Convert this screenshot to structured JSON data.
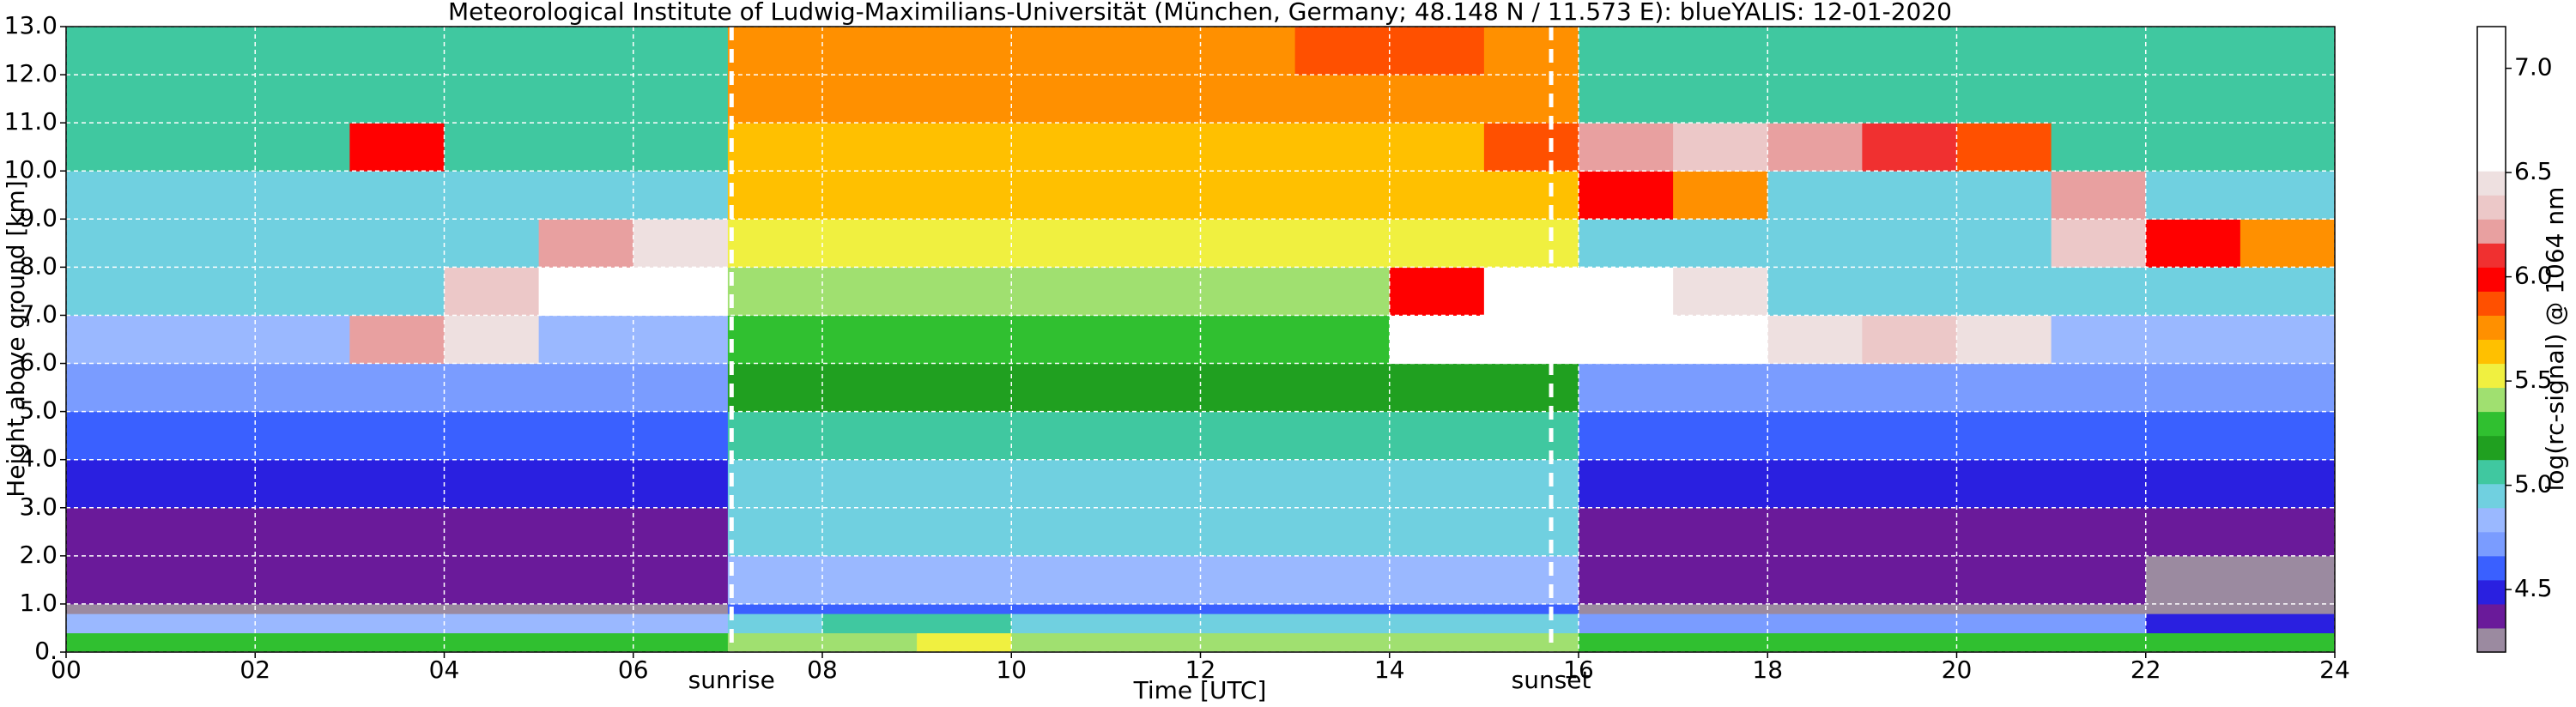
{
  "chart_data": {
    "type": "heatmap",
    "title": "Meteorological Institute of Ludwig-Maximilians-Universität (München, Germany; 48.148 N / 11.573 E):    blueYALIS: 12-01-2020",
    "x_label": "Time [UTC]",
    "y_label": "Height above ground [km]",
    "colorbar_label": "log(rc-signal) @ 1064 nm",
    "x": [
      0,
      1,
      2,
      3,
      4,
      5,
      6,
      7,
      8,
      9,
      10,
      11,
      12,
      13,
      14,
      15,
      16,
      17,
      18,
      19,
      20,
      21,
      22,
      23,
      24
    ],
    "y": [
      0,
      0.4,
      0.8,
      1,
      2,
      3,
      4,
      5,
      6,
      7,
      8,
      9,
      10,
      11,
      12,
      13
    ],
    "z": [
      [
        5.3,
        5.3,
        5.3,
        5.3,
        5.3,
        5.3,
        5.3,
        5.4,
        5.4,
        5.5,
        5.4,
        5.4,
        5.4,
        5.4,
        5.4,
        5.4,
        5.3,
        5.3,
        5.3,
        5.3,
        5.3,
        5.3,
        5.3,
        5.3
      ],
      [
        4.8,
        4.8,
        4.8,
        4.8,
        4.8,
        4.8,
        4.8,
        5.0,
        5.1,
        5.1,
        5.0,
        5.0,
        5.0,
        5.0,
        5.0,
        5.0,
        4.7,
        4.7,
        4.7,
        4.7,
        4.7,
        4.7,
        4.5,
        4.5
      ],
      [
        4.3,
        4.3,
        4.3,
        4.3,
        4.3,
        4.3,
        4.3,
        4.6,
        4.6,
        4.6,
        4.6,
        4.6,
        4.6,
        4.6,
        4.6,
        4.6,
        4.3,
        4.3,
        4.3,
        4.3,
        4.3,
        4.3,
        4.3,
        4.3
      ],
      [
        4.4,
        4.4,
        4.4,
        4.4,
        4.4,
        4.4,
        4.4,
        4.8,
        4.8,
        4.8,
        4.8,
        4.8,
        4.8,
        4.8,
        4.8,
        4.8,
        4.4,
        4.4,
        4.4,
        4.4,
        4.4,
        4.4,
        4.3,
        4.3
      ],
      [
        4.4,
        4.4,
        4.4,
        4.4,
        4.4,
        4.4,
        4.4,
        4.9,
        4.9,
        4.9,
        4.9,
        4.9,
        4.9,
        4.9,
        4.9,
        4.9,
        4.4,
        4.4,
        4.4,
        4.4,
        4.4,
        4.4,
        4.4,
        4.4
      ],
      [
        4.5,
        4.5,
        4.5,
        4.5,
        4.5,
        4.5,
        4.5,
        5.0,
        5.0,
        5.0,
        5.0,
        5.0,
        5.0,
        5.0,
        5.0,
        5.0,
        4.5,
        4.5,
        4.5,
        4.5,
        4.5,
        4.5,
        4.5,
        4.5
      ],
      [
        4.6,
        4.6,
        4.6,
        4.6,
        4.6,
        4.6,
        4.6,
        5.1,
        5.1,
        5.1,
        5.1,
        5.1,
        5.1,
        5.1,
        5.1,
        5.1,
        4.6,
        4.6,
        4.6,
        4.6,
        4.6,
        4.6,
        4.6,
        4.6
      ],
      [
        4.7,
        4.7,
        4.7,
        4.7,
        4.7,
        4.7,
        4.7,
        5.2,
        5.2,
        5.2,
        5.2,
        5.2,
        5.2,
        5.2,
        5.2,
        5.2,
        4.7,
        4.7,
        4.7,
        4.7,
        4.7,
        4.7,
        4.7,
        4.7
      ],
      [
        4.8,
        4.8,
        4.8,
        6.2,
        6.5,
        4.8,
        4.8,
        5.3,
        5.3,
        5.3,
        5.3,
        5.3,
        5.3,
        5.3,
        7.0,
        7.0,
        6.9,
        6.8,
        6.5,
        6.3,
        6.4,
        4.8,
        4.8,
        4.8
      ],
      [
        4.9,
        4.9,
        4.9,
        4.9,
        6.3,
        6.6,
        6.7,
        5.4,
        5.4,
        5.4,
        5.4,
        5.4,
        5.4,
        5.4,
        6.0,
        6.9,
        6.8,
        6.5,
        4.9,
        4.9,
        4.9,
        4.9,
        4.9,
        4.9
      ],
      [
        5.0,
        5.0,
        5.0,
        5.0,
        5.0,
        6.2,
        6.4,
        5.5,
        5.5,
        5.5,
        5.5,
        5.5,
        5.5,
        5.5,
        5.5,
        5.5,
        5.0,
        5.0,
        5.0,
        5.0,
        5.0,
        6.3,
        6.0,
        5.8
      ],
      [
        5.0,
        5.0,
        5.0,
        5.0,
        5.0,
        5.0,
        5.0,
        5.6,
        5.6,
        5.6,
        5.6,
        5.6,
        5.6,
        5.6,
        5.6,
        5.6,
        6.0,
        5.8,
        5.0,
        5.0,
        5.0,
        6.2,
        5.0,
        5.0
      ],
      [
        5.1,
        5.1,
        5.1,
        6.0,
        5.1,
        5.1,
        5.1,
        5.6,
        5.6,
        5.6,
        5.6,
        5.6,
        5.6,
        5.6,
        5.6,
        5.9,
        6.2,
        6.3,
        6.2,
        6.1,
        5.9,
        5.1,
        5.1,
        5.1
      ],
      [
        5.1,
        5.1,
        5.1,
        5.1,
        5.1,
        5.1,
        5.1,
        5.7,
        5.7,
        5.7,
        5.7,
        5.7,
        5.7,
        5.7,
        5.7,
        5.7,
        5.1,
        5.1,
        5.1,
        5.1,
        5.1,
        5.1,
        5.1,
        5.1
      ],
      [
        5.1,
        5.1,
        5.1,
        5.1,
        5.1,
        5.1,
        5.1,
        5.7,
        5.7,
        5.7,
        5.7,
        5.7,
        5.7,
        5.9,
        5.9,
        5.7,
        5.1,
        5.1,
        5.1,
        5.1,
        5.1,
        5.1,
        5.1,
        5.1
      ]
    ],
    "xlim": [
      0,
      24
    ],
    "ylim": [
      0,
      13
    ],
    "zlim": [
      4.2,
      7.2
    ],
    "xticks": [
      {
        "value": 0,
        "label": "00"
      },
      {
        "value": 2,
        "label": "02"
      },
      {
        "value": 4,
        "label": "04"
      },
      {
        "value": 6,
        "label": "06"
      },
      {
        "value": 8,
        "label": "08"
      },
      {
        "value": 10,
        "label": "10"
      },
      {
        "value": 12,
        "label": "12"
      },
      {
        "value": 14,
        "label": "14"
      },
      {
        "value": 16,
        "label": "16"
      },
      {
        "value": 18,
        "label": "18"
      },
      {
        "value": 20,
        "label": "20"
      },
      {
        "value": 22,
        "label": "22"
      },
      {
        "value": 24,
        "label": "24"
      }
    ],
    "yticks": [
      {
        "value": 0,
        "label": "0."
      },
      {
        "value": 1,
        "label": "1.0"
      },
      {
        "value": 2,
        "label": "2.0"
      },
      {
        "value": 3,
        "label": "3.0"
      },
      {
        "value": 4,
        "label": "4.0"
      },
      {
        "value": 5,
        "label": "5.0"
      },
      {
        "value": 6,
        "label": "6.0"
      },
      {
        "value": 7,
        "label": "7.0"
      },
      {
        "value": 8,
        "label": "8.0"
      },
      {
        "value": 9,
        "label": "9.0"
      },
      {
        "value": 10,
        "label": "10.0"
      },
      {
        "value": 11,
        "label": "11.0"
      },
      {
        "value": 12,
        "label": "12.0"
      },
      {
        "value": 13,
        "label": "13.0"
      }
    ],
    "zticks": [
      4.5,
      {
        "value": 5,
        "label": "5.0"
      },
      5.5,
      {
        "value": 6,
        "label": "6.0"
      },
      6.5,
      {
        "value": 7,
        "label": "7.0"
      }
    ],
    "colormap": [
      "#9b8aa0",
      "#6a1a9a",
      "#2a20e0",
      "#3a60ff",
      "#7a9cff",
      "#9ab8ff",
      "#70d0e0",
      "#40c8a0",
      "#20a020",
      "#30c030",
      "#a0e070",
      "#f0f040",
      "#ffc000",
      "#ff9000",
      "#ff5000",
      "#ff0000",
      "#f03030",
      "#e8a0a0",
      "#ecc8c8",
      "#eee0e0",
      "#ffffff",
      "#ffffff",
      "#ffffff",
      "#ffffff",
      "#ffffff",
      "#ffffff"
    ],
    "grid": true,
    "events": [
      {
        "label": "sunrise",
        "x": 7.04
      },
      {
        "label": "sunset",
        "x": 15.71
      }
    ]
  }
}
